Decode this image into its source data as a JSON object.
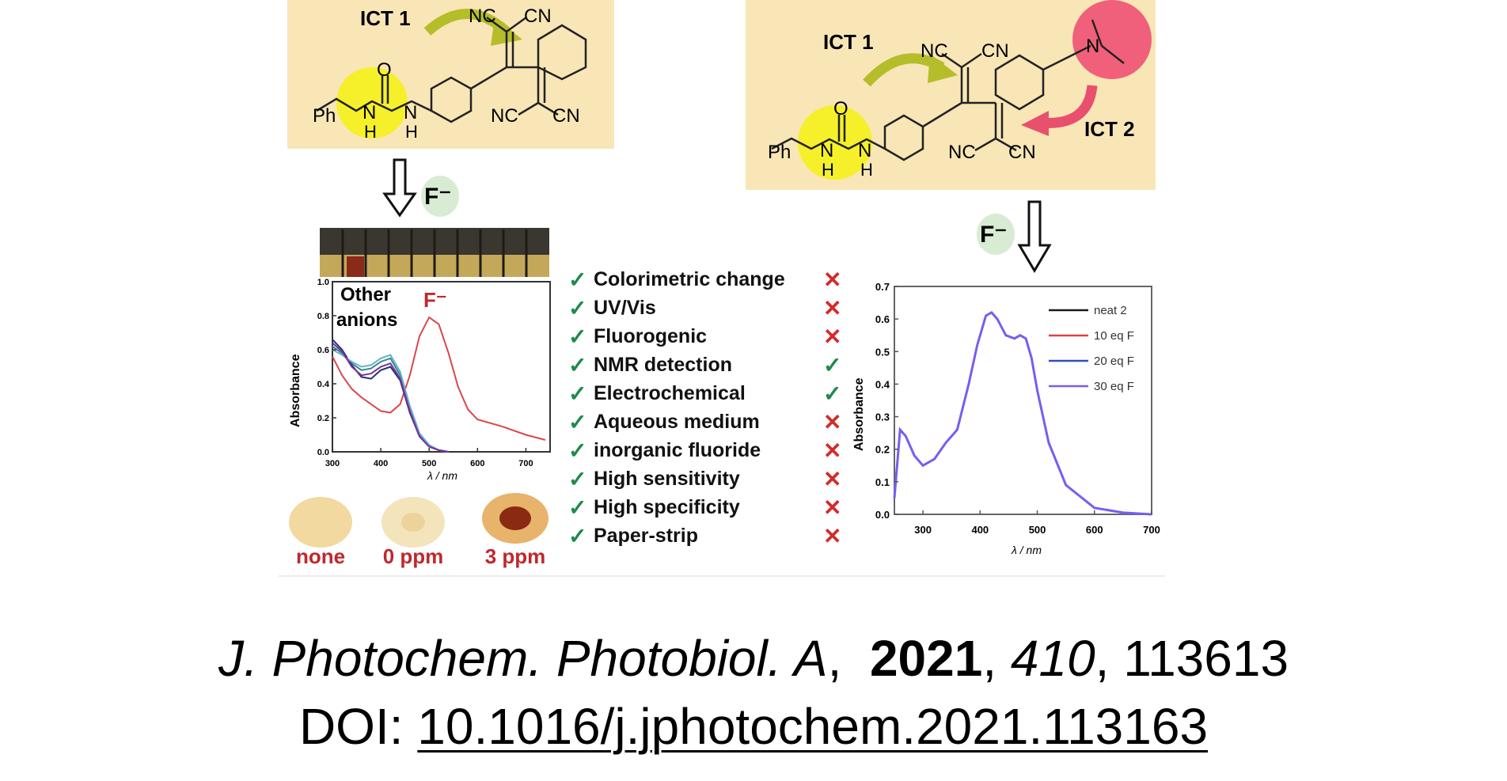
{
  "abstract": {
    "left_structure": {
      "ict_label": "ICT 1",
      "atoms": [
        "NC",
        "CN",
        "NC",
        "CN",
        "O",
        "Ph",
        "N",
        "N",
        "H",
        "H"
      ],
      "analyte": "F⁻"
    },
    "right_structure": {
      "ict1_label": "ICT 1",
      "ict2_label": "ICT 2",
      "atoms": [
        "NC",
        "CN",
        "NC",
        "CN",
        "O",
        "Ph",
        "N",
        "N",
        "H",
        "H",
        "N"
      ],
      "analyte": "F⁻"
    },
    "left_chart_labels": {
      "other_anions_line1": "Other",
      "other_anions_line2": "anions",
      "fluoride": "F⁻",
      "ylabel": "Absorbance",
      "xlabel": "λ / nm",
      "yticks": [
        "0.0",
        "0.2",
        "0.4",
        "0.6",
        "0.8",
        "1.0"
      ],
      "xticks": [
        "300",
        "400",
        "500",
        "600",
        "700"
      ]
    },
    "paper_strips": [
      {
        "label": "none",
        "color": "#f1d9a0"
      },
      {
        "label": "0 ppm",
        "color": "#f4e0b0"
      },
      {
        "label": "3 ppm",
        "color": "#8a2a12"
      }
    ],
    "features": [
      {
        "name": "Colorimetric change",
        "left": "check",
        "right": "cross"
      },
      {
        "name": "UV/Vis",
        "left": "check",
        "right": "cross"
      },
      {
        "name": "Fluorogenic",
        "left": "check",
        "right": "cross"
      },
      {
        "name": "NMR detection",
        "left": "check",
        "right": "check"
      },
      {
        "name": "Electrochemical",
        "left": "check",
        "right": "check"
      },
      {
        "name": "Aqueous medium",
        "left": "check",
        "right": "cross"
      },
      {
        "name": "inorganic fluoride",
        "left": "check",
        "right": "cross"
      },
      {
        "name": "High sensitivity",
        "left": "check",
        "right": "cross"
      },
      {
        "name": "High specificity",
        "left": "check",
        "right": "cross"
      },
      {
        "name": "Paper-strip",
        "left": "check",
        "right": "cross"
      }
    ],
    "colors": {
      "structure_bg": "#f8e6b6",
      "highlight_yellow": "#f5f02a",
      "highlight_pink": "#f0607a",
      "arrow_green": "#b5bd2a",
      "arrow_pink": "#e8506e",
      "check_green": "#1f8a4a",
      "cross_red": "#d42a2a",
      "label_red": "#c0282c"
    }
  },
  "chart_data": [
    {
      "type": "line",
      "title": "",
      "xlabel": "λ / nm",
      "ylabel": "Absorbance",
      "xlim": [
        300,
        750
      ],
      "ylim": [
        0,
        1.0
      ],
      "annotations": [
        "Other anions",
        "F⁻"
      ],
      "series": [
        {
          "name": "",
          "color": "#d9484a",
          "x": [
            300,
            320,
            340,
            360,
            380,
            400,
            420,
            440,
            460,
            480,
            500,
            520,
            540,
            560,
            580,
            600,
            650,
            700,
            740
          ],
          "y": [
            0.56,
            0.45,
            0.37,
            0.32,
            0.28,
            0.24,
            0.23,
            0.28,
            0.45,
            0.68,
            0.79,
            0.75,
            0.58,
            0.38,
            0.25,
            0.19,
            0.15,
            0.1,
            0.07
          ]
        },
        {
          "name": "",
          "color": "#2d8b8e",
          "x": [
            300,
            320,
            340,
            360,
            380,
            400,
            420,
            440,
            460,
            480,
            500,
            520,
            540
          ],
          "y": [
            0.62,
            0.58,
            0.52,
            0.48,
            0.49,
            0.53,
            0.55,
            0.45,
            0.25,
            0.1,
            0.04,
            0.01,
            0.0
          ]
        },
        {
          "name": "",
          "color": "#27336e",
          "x": [
            300,
            320,
            340,
            360,
            380,
            400,
            420,
            440,
            460,
            480,
            500,
            520,
            540
          ],
          "y": [
            0.66,
            0.6,
            0.51,
            0.44,
            0.43,
            0.48,
            0.5,
            0.42,
            0.23,
            0.09,
            0.03,
            0.01,
            0.0
          ]
        },
        {
          "name": "",
          "color": "#6ab0c8",
          "x": [
            300,
            320,
            340,
            360,
            380,
            400,
            420,
            440,
            460,
            480,
            500,
            520,
            540
          ],
          "y": [
            0.6,
            0.57,
            0.53,
            0.5,
            0.51,
            0.55,
            0.57,
            0.47,
            0.27,
            0.11,
            0.04,
            0.01,
            0.0
          ]
        },
        {
          "name": "",
          "color": "#7a2ea0",
          "x": [
            300,
            320,
            340,
            360,
            380,
            400,
            420,
            440,
            460,
            480,
            500,
            520,
            540
          ],
          "y": [
            0.64,
            0.59,
            0.5,
            0.45,
            0.46,
            0.5,
            0.52,
            0.43,
            0.24,
            0.09,
            0.03,
            0.01,
            0.0
          ]
        }
      ]
    },
    {
      "type": "line",
      "title": "",
      "xlabel": "λ / nm",
      "ylabel": "Absorbance",
      "xlim": [
        250,
        700
      ],
      "ylim": [
        0,
        0.7
      ],
      "xticks": [
        "300",
        "400",
        "500",
        "600",
        "700"
      ],
      "yticks": [
        "0.0",
        "0.1",
        "0.2",
        "0.3",
        "0.4",
        "0.5",
        "0.6",
        "0.7"
      ],
      "legend": "top-right",
      "series": [
        {
          "name": "neat 2",
          "color": "#1a1a1a",
          "x": [
            250,
            260,
            270,
            285,
            300,
            320,
            340,
            360,
            380,
            395,
            410,
            420,
            430,
            445,
            460,
            470,
            480,
            490,
            500,
            520,
            550,
            600,
            650,
            700
          ],
          "y": [
            0.05,
            0.26,
            0.24,
            0.18,
            0.15,
            0.17,
            0.22,
            0.26,
            0.4,
            0.52,
            0.61,
            0.62,
            0.6,
            0.55,
            0.54,
            0.55,
            0.54,
            0.48,
            0.38,
            0.22,
            0.09,
            0.02,
            0.005,
            0.0
          ]
        },
        {
          "name": "10 eq F",
          "color": "#e04040",
          "x": [
            250,
            260,
            270,
            285,
            300,
            320,
            340,
            360,
            380,
            395,
            410,
            420,
            430,
            445,
            460,
            470,
            480,
            490,
            500,
            520,
            550,
            600,
            650,
            700
          ],
          "y": [
            0.05,
            0.26,
            0.24,
            0.18,
            0.15,
            0.17,
            0.22,
            0.26,
            0.4,
            0.52,
            0.61,
            0.62,
            0.6,
            0.55,
            0.54,
            0.55,
            0.54,
            0.48,
            0.38,
            0.22,
            0.09,
            0.02,
            0.005,
            0.0
          ]
        },
        {
          "name": "20 eq F",
          "color": "#3050b8",
          "x": [
            250,
            260,
            270,
            285,
            300,
            320,
            340,
            360,
            380,
            395,
            410,
            420,
            430,
            445,
            460,
            470,
            480,
            490,
            500,
            520,
            550,
            600,
            650,
            700
          ],
          "y": [
            0.05,
            0.26,
            0.24,
            0.18,
            0.15,
            0.17,
            0.22,
            0.26,
            0.4,
            0.52,
            0.61,
            0.62,
            0.6,
            0.55,
            0.54,
            0.55,
            0.54,
            0.48,
            0.38,
            0.22,
            0.09,
            0.02,
            0.005,
            0.0
          ]
        },
        {
          "name": "30 eq F",
          "color": "#7a5cf0",
          "x": [
            250,
            260,
            270,
            285,
            300,
            320,
            340,
            360,
            380,
            395,
            410,
            420,
            430,
            445,
            460,
            470,
            480,
            490,
            500,
            520,
            550,
            600,
            650,
            700
          ],
          "y": [
            0.05,
            0.26,
            0.24,
            0.18,
            0.15,
            0.17,
            0.22,
            0.26,
            0.4,
            0.52,
            0.61,
            0.62,
            0.6,
            0.55,
            0.54,
            0.55,
            0.54,
            0.48,
            0.38,
            0.22,
            0.09,
            0.02,
            0.005,
            0.0
          ]
        }
      ]
    }
  ],
  "citation": {
    "journal": "J. Photochem. Photobiol. A",
    "sep1": ", ",
    "year": "2021",
    "sep2": ", ",
    "volume": "410",
    "sep3": ", ",
    "article": "113613",
    "doi_label": "DOI: ",
    "doi": "10.1016/j.jphotochem.2021.113163"
  }
}
